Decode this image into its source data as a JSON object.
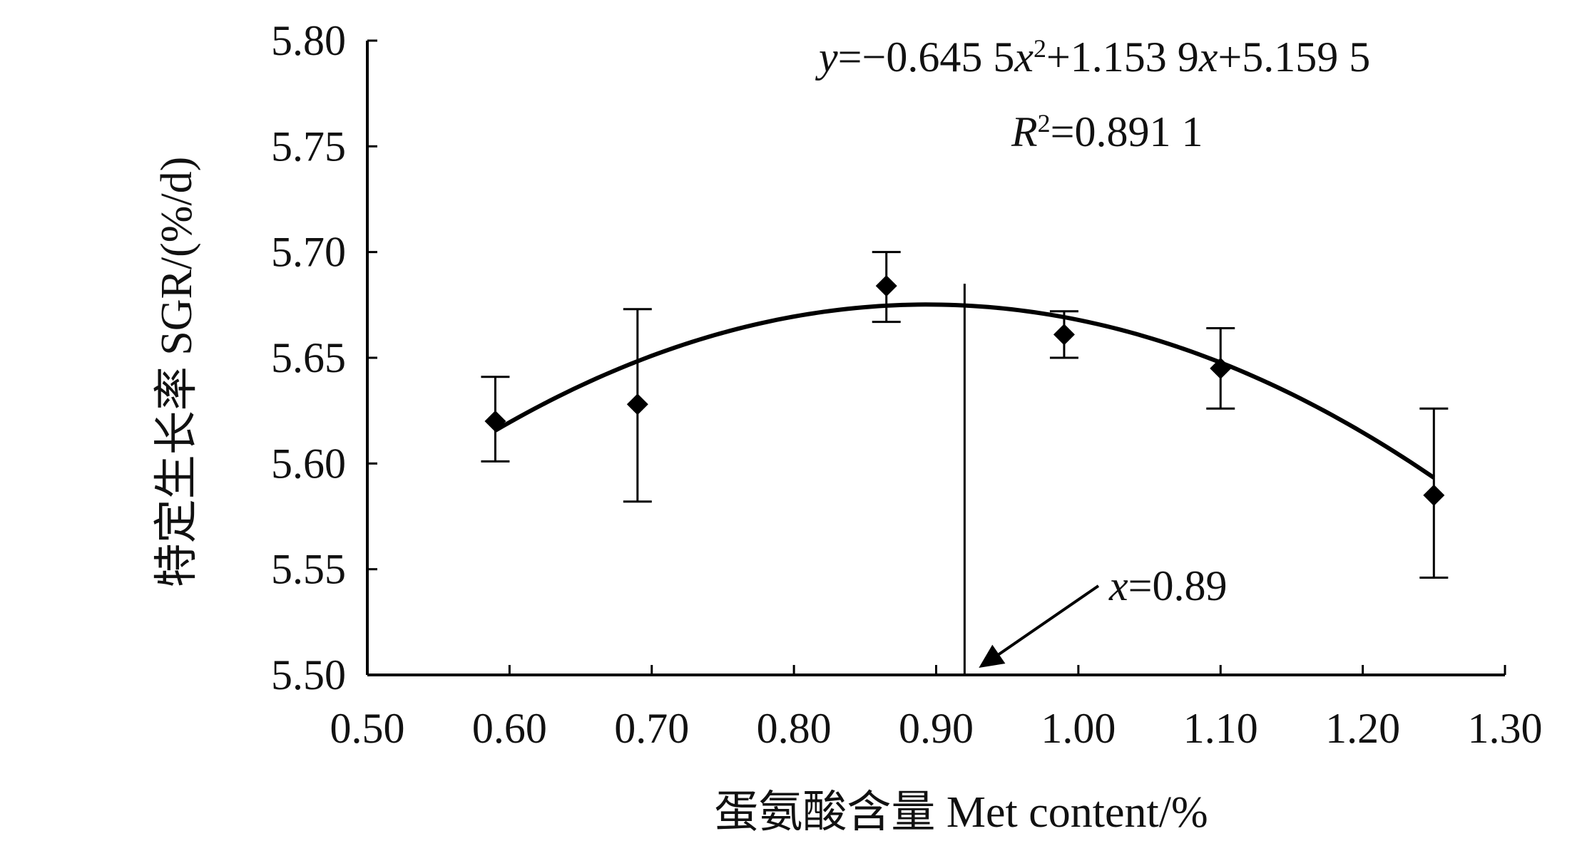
{
  "chart_data": {
    "type": "scatter",
    "xlabel": "蛋氨酸含量  Met content/%",
    "ylabel": "特定生长率  SGR/(%/d)",
    "xlim": [
      0.5,
      1.3
    ],
    "ylim": [
      5.5,
      5.8
    ],
    "x_ticks": [
      "0.50",
      "0.60",
      "0.70",
      "0.80",
      "0.90",
      "1.00",
      "1.10",
      "1.20",
      "1.30"
    ],
    "y_ticks": [
      "5.50",
      "5.55",
      "5.60",
      "5.65",
      "5.70",
      "5.75",
      "5.80"
    ],
    "grid": false,
    "series": [
      {
        "marker": "diamond",
        "color": "#000000",
        "points": [
          {
            "x": 0.59,
            "y": 5.62,
            "err_low": 5.601,
            "err_high": 5.641
          },
          {
            "x": 0.69,
            "y": 5.628,
            "err_low": 5.582,
            "err_high": 5.673
          },
          {
            "x": 0.865,
            "y": 5.684,
            "err_low": 5.667,
            "err_high": 5.7
          },
          {
            "x": 0.99,
            "y": 5.661,
            "err_low": 5.65,
            "err_high": 5.672
          },
          {
            "x": 1.1,
            "y": 5.645,
            "err_low": 5.626,
            "err_high": 5.664
          },
          {
            "x": 1.25,
            "y": 5.585,
            "err_low": 5.546,
            "err_high": 5.626
          }
        ]
      }
    ],
    "fit_curve": {
      "a": -0.6455,
      "b": 1.1539,
      "c": 5.1595,
      "x_range": [
        0.59,
        1.25
      ]
    },
    "vertical_line_x": 0.92,
    "annotations": {
      "equation_prefix": "y",
      "equation_mid1": "=−0.645 5",
      "equation_x": "x",
      "equation_sup": "2",
      "equation_mid2": "+1.153 9",
      "equation_x2": "x",
      "equation_end": "+5.159 5",
      "r2_r": "R",
      "r2_sup": "2",
      "r2_value": "=0.891 1",
      "arrow_var": "x",
      "arrow_value": "=0.89"
    }
  }
}
